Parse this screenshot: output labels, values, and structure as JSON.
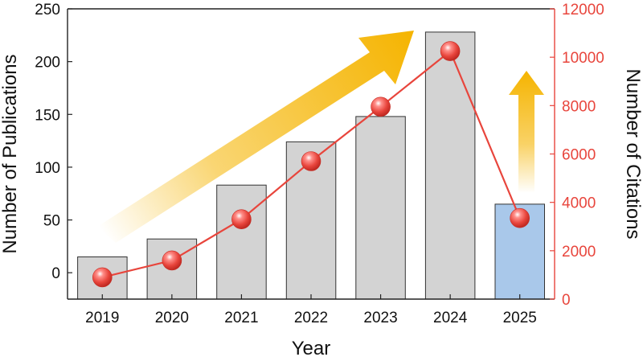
{
  "chart_data": {
    "type": "bar+line",
    "categories": [
      "2019",
      "2020",
      "2021",
      "2022",
      "2023",
      "2024",
      "2025"
    ],
    "series": [
      {
        "type": "bar",
        "axis": "left",
        "values": [
          15,
          32,
          83,
          124,
          148,
          228,
          65
        ],
        "colors": [
          "#d3d3d3",
          "#d3d3d3",
          "#d3d3d3",
          "#d3d3d3",
          "#d3d3d3",
          "#d3d3d3",
          "#a9c8ea"
        ]
      },
      {
        "type": "line",
        "axis": "right",
        "values": [
          900,
          1600,
          3300,
          5700,
          7950,
          10250,
          3350
        ],
        "color": "#e8453c"
      }
    ],
    "xlabel": "Year",
    "ylabel": "Number of Publications",
    "y2label": "Number of Citations",
    "ylim": [
      -25,
      250
    ],
    "y2lim": [
      0,
      12000
    ],
    "yticks": [
      0,
      50,
      100,
      150,
      200,
      250
    ],
    "y2ticks": [
      0,
      2000,
      4000,
      6000,
      8000,
      10000,
      12000
    ],
    "grid": false,
    "annotations": [
      {
        "shape": "arrow",
        "color": "#f5b400",
        "direction": "up-right"
      },
      {
        "shape": "arrow",
        "color": "#f5b400",
        "direction": "up"
      }
    ]
  }
}
